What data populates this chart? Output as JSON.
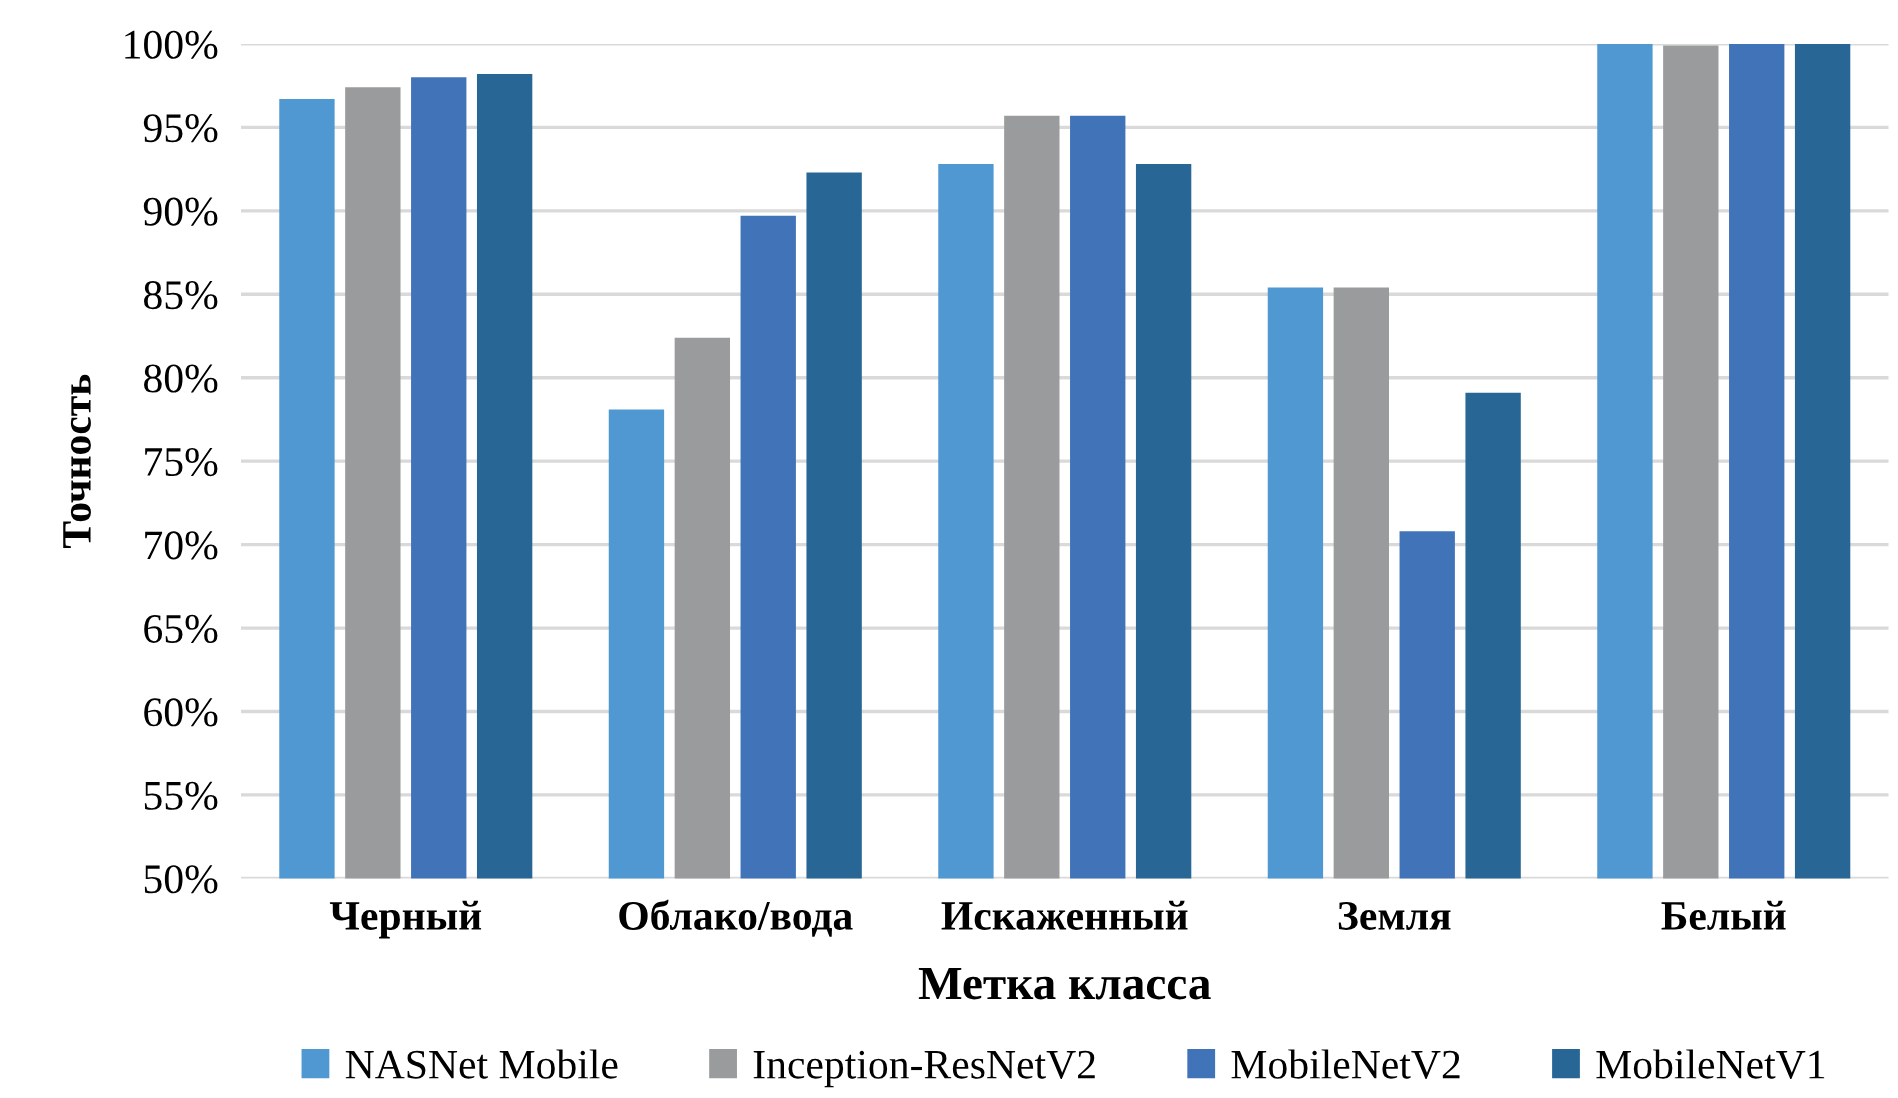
{
  "chart_data": {
    "type": "bar",
    "xlabel": "Метка класса",
    "ylabel": "Точность",
    "categories": [
      "Черный",
      "Облако/вода",
      "Искаженный",
      "Земля",
      "Белый"
    ],
    "series": [
      {
        "name": "NASNet Mobile",
        "color": "#5098d2",
        "values": [
          96.7,
          78.1,
          92.8,
          85.4,
          100
        ]
      },
      {
        "name": "Inception-ResNetV2",
        "color": "#999b9c",
        "values": [
          97.4,
          82.4,
          95.7,
          85.4,
          99.9
        ]
      },
      {
        "name": "MobileNetV2",
        "color": "#4173b9",
        "values": [
          98.0,
          89.7,
          95.7,
          70.8,
          100
        ]
      },
      {
        "name": "MobileNetV1",
        "color": "#286696",
        "values": [
          98.2,
          92.3,
          92.8,
          79.1,
          100
        ]
      }
    ],
    "ylim": [
      50,
      100
    ],
    "yticks": [
      {
        "value": 50,
        "label": "50%"
      },
      {
        "value": 55,
        "label": "55%"
      },
      {
        "value": 60,
        "label": "60%"
      },
      {
        "value": 65,
        "label": "65%"
      },
      {
        "value": 70,
        "label": "70%"
      },
      {
        "value": 75,
        "label": "75%"
      },
      {
        "value": 80,
        "label": "80%"
      },
      {
        "value": 85,
        "label": "85%"
      },
      {
        "value": 90,
        "label": "90%"
      },
      {
        "value": 95,
        "label": "95%"
      },
      {
        "value": 100,
        "label": "100%"
      }
    ],
    "grid": "y",
    "legend": "bottom"
  }
}
